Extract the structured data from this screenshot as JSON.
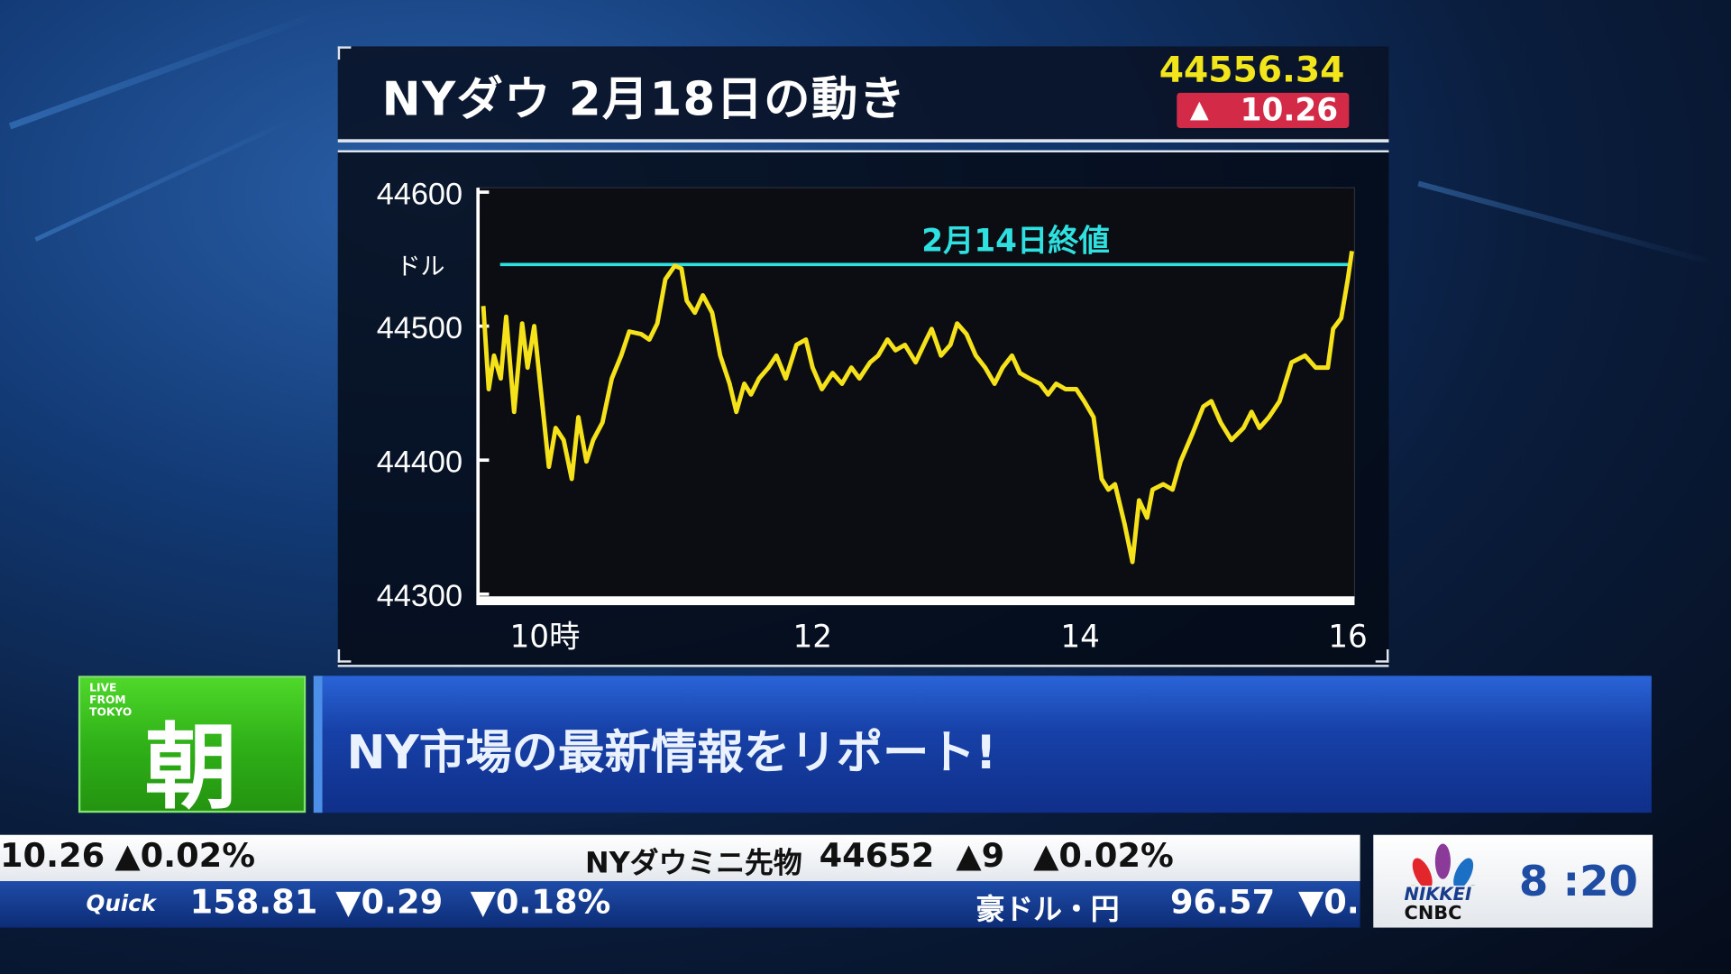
{
  "header": {
    "title": "NYダウ 2月18日の動き",
    "price": "44556.34",
    "change_arrow": "▲",
    "change": "10.26",
    "change_color": "#d32a48",
    "price_color": "#f2e51c"
  },
  "chart_data": {
    "type": "line",
    "title": "NYダウ 2月18日の動き",
    "ylabel": "ドル",
    "xlabel": "",
    "xlim": [
      9.5,
      16.05
    ],
    "ylim": [
      44300,
      44600
    ],
    "x_ticks": [
      {
        "value": 10,
        "label": "10時"
      },
      {
        "value": 12,
        "label": "12"
      },
      {
        "value": 14,
        "label": "14"
      },
      {
        "value": 16,
        "label": "16"
      }
    ],
    "y_ticks": [
      {
        "value": 44600,
        "label": "44600"
      },
      {
        "value": 44500,
        "label": "44500"
      },
      {
        "value": 44400,
        "label": "44400"
      },
      {
        "value": 44300,
        "label": "44300"
      }
    ],
    "reference_line": {
      "label": "2月14日終値",
      "value": 44546,
      "color": "#2fe0e0"
    },
    "series": [
      {
        "color": "#f5e21a",
        "x": [
          9.54,
          9.58,
          9.62,
          9.67,
          9.71,
          9.77,
          9.83,
          9.87,
          9.92,
          9.96,
          10.03,
          10.08,
          10.14,
          10.2,
          10.25,
          10.31,
          10.36,
          10.43,
          10.5,
          10.57,
          10.63,
          10.72,
          10.78,
          10.84,
          10.9,
          10.97,
          11.02,
          11.06,
          11.12,
          11.18,
          11.25,
          11.31,
          11.38,
          11.43,
          11.49,
          11.54,
          11.6,
          11.67,
          11.73,
          11.8,
          11.88,
          11.95,
          12.0,
          12.07,
          12.15,
          12.22,
          12.29,
          12.35,
          12.43,
          12.49,
          12.56,
          12.62,
          12.69,
          12.77,
          12.85,
          12.89,
          12.96,
          13.03,
          13.08,
          13.15,
          13.22,
          13.29,
          13.36,
          13.42,
          13.49,
          13.55,
          13.62,
          13.7,
          13.76,
          13.82,
          13.89,
          13.97,
          14.03,
          14.1,
          14.16,
          14.21,
          14.26,
          14.33,
          14.39,
          14.44,
          14.5,
          14.54,
          14.62,
          14.69,
          14.75,
          14.84,
          14.92,
          14.98,
          15.05,
          15.13,
          15.22,
          15.28,
          15.34,
          15.41,
          15.49,
          15.58,
          15.68,
          15.76,
          15.85,
          15.89,
          15.95,
          16.0,
          16.03
        ],
        "y": [
          44515,
          44453,
          44478,
          44461,
          44507,
          44436,
          44502,
          44469,
          44500,
          44461,
          44395,
          44424,
          44415,
          44386,
          44432,
          44399,
          44415,
          44428,
          44461,
          44478,
          44496,
          44494,
          44490,
          44502,
          44535,
          44545,
          44543,
          44519,
          44510,
          44523,
          44510,
          44478,
          44457,
          44436,
          44457,
          44449,
          44461,
          44469,
          44478,
          44461,
          44486,
          44490,
          44469,
          44453,
          44465,
          44457,
          44469,
          44461,
          44473,
          44478,
          44490,
          44482,
          44486,
          44473,
          44490,
          44498,
          44478,
          44486,
          44502,
          44494,
          44478,
          44469,
          44457,
          44469,
          44478,
          44465,
          44461,
          44457,
          44449,
          44457,
          44453,
          44453,
          44444,
          44432,
          44386,
          44378,
          44382,
          44353,
          44324,
          44370,
          44357,
          44378,
          44382,
          44378,
          44399,
          44420,
          44440,
          44444,
          44428,
          44415,
          44424,
          44436,
          44424,
          44432,
          44444,
          44473,
          44478,
          44469,
          44469,
          44498,
          44506,
          44535,
          44556
        ]
      }
    ]
  },
  "banner": {
    "live_line1": "LIVE",
    "live_line2": "FROM",
    "live_line3": "TOKYO",
    "show": "朝",
    "headline": "NY市場の最新情報をリポート!"
  },
  "ticker_top": {
    "partial_value": "10.26",
    "partial_pct": "▲0.02%",
    "name": "NYダウミニ先物",
    "value": "44652",
    "change": "▲9",
    "pct": "▲0.02%"
  },
  "ticker_bottom": {
    "source": "Quick",
    "value": "158.81",
    "change": "▼0.29",
    "pct": "▼0.18%",
    "name2": "豪ドル・円",
    "value2": "96.57",
    "change2_partial": "▼0."
  },
  "corner": {
    "logo_line1": "NIKKEI",
    "logo_line2": "CNBC",
    "time": "8 :20"
  }
}
